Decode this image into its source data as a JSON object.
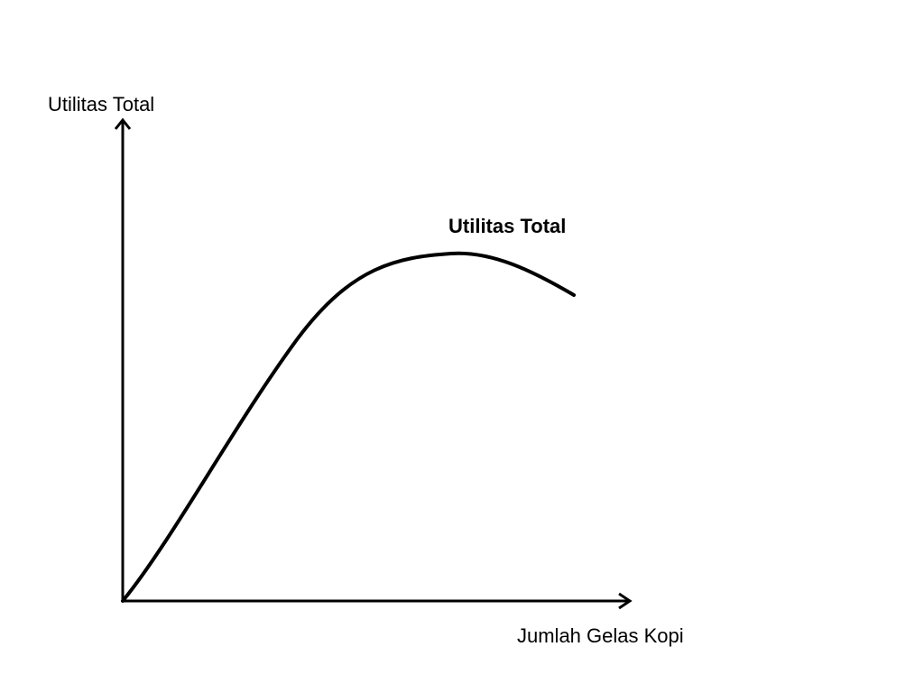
{
  "diagram": {
    "y_axis_label": "Utilitas Total",
    "x_axis_label": "Jumlah Gelas Kopi",
    "curve_label": "Utilitas Total",
    "line_color": "#000000",
    "background_color": "#ffffff"
  }
}
